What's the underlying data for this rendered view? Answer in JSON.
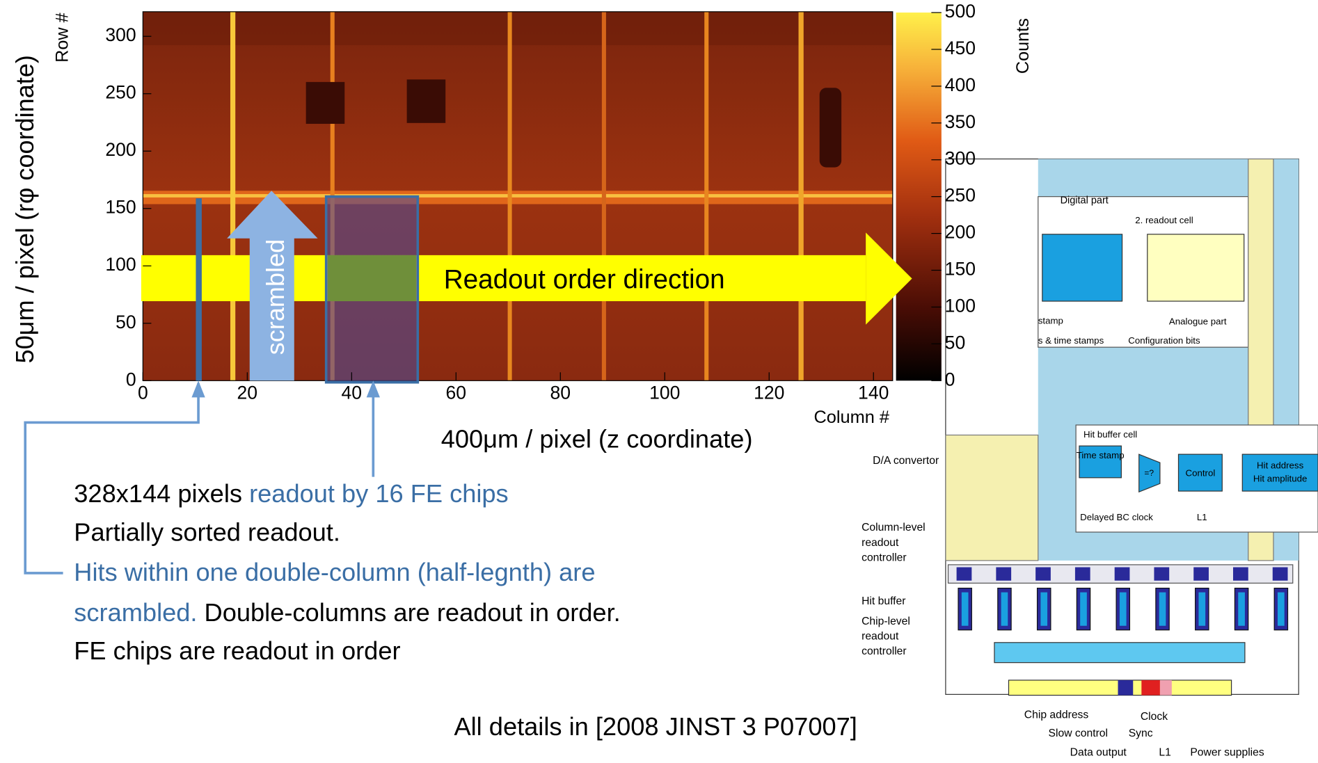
{
  "plot": {
    "y_axis_title": "Row #",
    "x_axis_title": "Column #",
    "colorbar_title": "Counts",
    "xlim": [
      0,
      144
    ],
    "ylim": [
      0,
      328
    ],
    "clim": [
      0,
      500
    ],
    "xticks": [
      0,
      20,
      40,
      60,
      80,
      100,
      120,
      140
    ],
    "yticks": [
      0,
      50,
      100,
      150,
      200,
      250,
      300
    ],
    "cticks": [
      0,
      50,
      100,
      150,
      200,
      250,
      300,
      350,
      400,
      450,
      500
    ],
    "y_note": "50μm / pixel (rφ coordinate)",
    "x_note": "400μm / pixel (z coordinate)",
    "arrow_label": "Readout order direction",
    "scrambled_label": "scrambled"
  },
  "notes": [
    [
      {
        "text": "328x144 pixels ",
        "highlight": false
      },
      {
        "text": "readout by 16 FE chips",
        "highlight": true
      }
    ],
    [
      {
        "text": "Partially sorted readout.",
        "highlight": false
      }
    ],
    [
      {
        "text": "Hits within one double-column (half-legnth) are",
        "highlight": true
      }
    ],
    [
      {
        "text": "scrambled.",
        "highlight": true
      },
      {
        "text": " Double-columns are readout in order.",
        "highlight": false
      }
    ],
    [
      {
        "text": "FE chips are readout in order",
        "highlight": false
      }
    ]
  ],
  "reference": "All details in [2008 JINST 3 P07007]",
  "diagram": {
    "labels": [
      "Digital part",
      "2. readout cell",
      "stamp",
      "s & time stamps",
      "Configuration bits",
      "Analogue part",
      "Hit buffer cell",
      "Time stamp",
      "=?",
      "Control",
      "Hit address",
      "Hit amplitude",
      "Delayed BC clock",
      "L1",
      "D/A convertor",
      "Column-level",
      "readout",
      "controller",
      "Hit buffer",
      "Chip-level",
      "readout",
      "controller",
      "Chip address",
      "Clock",
      "Slow control",
      "Sync",
      "Data output",
      "L1",
      "Power supplies"
    ]
  }
}
